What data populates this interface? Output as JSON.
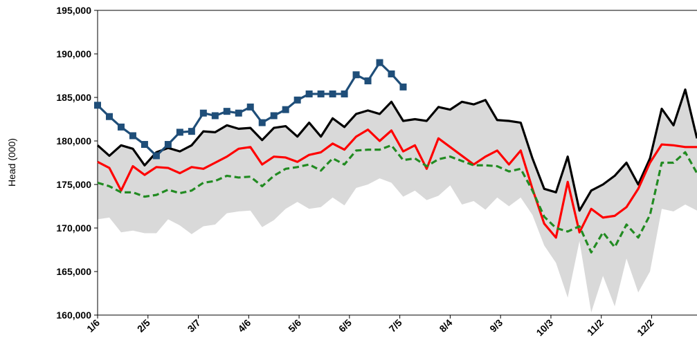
{
  "chart_data": {
    "type": "line",
    "y_label": "Head (000)",
    "x": [
      6,
      13,
      20,
      27,
      34,
      41,
      48,
      55,
      62,
      69,
      76,
      83,
      90,
      97,
      104,
      111,
      118,
      125,
      132,
      139,
      146,
      153,
      160,
      167,
      174,
      181,
      188,
      195,
      202,
      209,
      216,
      223,
      230,
      237,
      244,
      251,
      258,
      265,
      272,
      279,
      286,
      293,
      300,
      307,
      314,
      321,
      328,
      335,
      342,
      349,
      356,
      363
    ],
    "xlim": [
      6,
      363
    ],
    "xticks": [
      {
        "value": 6,
        "label": "1/6"
      },
      {
        "value": 36,
        "label": "2/5"
      },
      {
        "value": 66,
        "label": "3/7"
      },
      {
        "value": 96,
        "label": "4/6"
      },
      {
        "value": 126,
        "label": "5/6"
      },
      {
        "value": 156,
        "label": "6/5"
      },
      {
        "value": 186,
        "label": "7/5"
      },
      {
        "value": 216,
        "label": "8/4"
      },
      {
        "value": 246,
        "label": "9/3"
      },
      {
        "value": 276,
        "label": "10/3"
      },
      {
        "value": 306,
        "label": "11/2"
      },
      {
        "value": 336,
        "label": "12/2"
      }
    ],
    "ylim": [
      160000,
      195000
    ],
    "yticks": [
      {
        "value": 160000,
        "label": "160,000"
      },
      {
        "value": 165000,
        "label": "165,000"
      },
      {
        "value": 170000,
        "label": "170,000"
      },
      {
        "value": 175000,
        "label": "175,000"
      },
      {
        "value": 180000,
        "label": "180,000"
      },
      {
        "value": 185000,
        "label": "185,000"
      },
      {
        "value": 190000,
        "label": "190,000"
      },
      {
        "value": 195000,
        "label": "195,000"
      }
    ],
    "series": [
      {
        "color": "#000000",
        "dash": false,
        "band_color": "#d9d9d9",
        "values": [
          179500,
          178300,
          179500,
          179100,
          177200,
          178700,
          179200,
          178800,
          179500,
          181100,
          181000,
          181800,
          181400,
          181500,
          180100,
          181500,
          181700,
          180500,
          182100,
          180500,
          182600,
          181600,
          183100,
          183500,
          183100,
          184500,
          182300,
          182500,
          182300,
          183900,
          183600,
          184500,
          184200,
          184700,
          182400,
          182300,
          182100,
          178000,
          174500,
          174100,
          178200,
          172000,
          174300,
          175000,
          176000,
          177500,
          175000,
          178000,
          183700,
          181800,
          185900,
          180300
        ],
        "band_low": [
          171000,
          171200,
          169500,
          169700,
          169400,
          169400,
          171000,
          170300,
          169300,
          170200,
          170400,
          171700,
          171900,
          172000,
          170100,
          170900,
          172200,
          173000,
          172200,
          172400,
          173500,
          172600,
          174600,
          175000,
          175700,
          175200,
          173600,
          174300,
          173200,
          173700,
          174900,
          172700,
          173100,
          172100,
          173500,
          172500,
          173500,
          171500,
          168000,
          166000,
          162000,
          168500,
          160300,
          164500,
          161000,
          166500,
          162600,
          165000,
          172200,
          171900,
          172700,
          172000
        ]
      },
      {
        "color": "#ff0000",
        "dash": false,
        "values": [
          177600,
          176900,
          174300,
          177100,
          176100,
          177000,
          176900,
          176300,
          177000,
          176800,
          177500,
          178200,
          179100,
          179300,
          177300,
          178200,
          178100,
          177600,
          178400,
          178700,
          179700,
          179000,
          180500,
          181300,
          180000,
          181200,
          178800,
          179500,
          176800,
          180300,
          179300,
          178300,
          177300,
          178200,
          178900,
          177300,
          178900,
          174500,
          170500,
          168900,
          175300,
          169500,
          172200,
          171200,
          171400,
          172400,
          174500,
          177500,
          179600,
          179500,
          179300,
          179300
        ]
      },
      {
        "color": "#228b22",
        "dash": true,
        "values": [
          175200,
          174800,
          174100,
          174100,
          173600,
          173800,
          174400,
          174000,
          174300,
          175200,
          175400,
          176000,
          175800,
          175900,
          174800,
          176000,
          176800,
          177000,
          177300,
          176600,
          178000,
          177300,
          178900,
          179000,
          179000,
          179500,
          177800,
          178000,
          177100,
          177900,
          178200,
          177700,
          177200,
          177200,
          177100,
          176500,
          176800,
          174300,
          171300,
          170000,
          169600,
          170200,
          167200,
          169500,
          167800,
          170400,
          168900,
          171500,
          177500,
          177500,
          178700,
          176300
        ]
      },
      {
        "color": "#1f4e79",
        "dash": false,
        "markers": true,
        "values": [
          184100,
          182800,
          181600,
          180600,
          179600,
          178300,
          179600,
          181000,
          181100,
          183200,
          182900,
          183400,
          183200,
          183900,
          182100,
          182900,
          183600,
          184700,
          185400,
          185400,
          185400,
          185400,
          187600,
          186900,
          189000,
          187700,
          186200,
          null,
          null,
          null,
          null,
          null,
          null,
          null,
          null,
          null,
          null,
          null,
          null,
          null,
          null,
          null,
          null,
          null,
          null,
          null,
          null,
          null,
          null,
          null,
          null,
          null
        ]
      }
    ]
  }
}
